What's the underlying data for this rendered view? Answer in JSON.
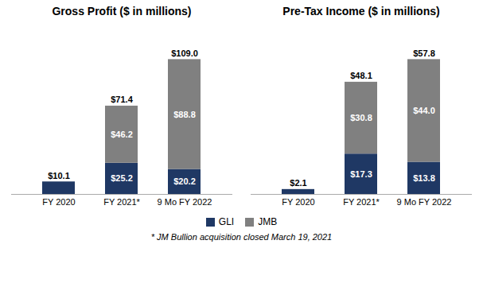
{
  "chart_data": [
    {
      "type": "bar",
      "stacked": true,
      "title": "Gross Profit ($ in millions)",
      "categories": [
        "FY 2020",
        "FY 2021*",
        "9 Mo FY 2022"
      ],
      "series": [
        {
          "name": "GLI",
          "color": "#1F3864",
          "values": [
            10.1,
            25.2,
            20.2
          ],
          "value_labels": [
            null,
            "$25.2",
            "$20.2"
          ]
        },
        {
          "name": "JMB",
          "color": "#808080",
          "values": [
            0.0,
            46.2,
            88.8
          ],
          "value_labels": [
            null,
            "$46.2",
            "$88.8"
          ]
        }
      ],
      "totals": [
        10.1,
        71.4,
        109.0
      ],
      "total_labels": [
        "$10.1",
        "$71.4",
        "$109.0"
      ],
      "ylim": [
        0,
        136.25
      ],
      "grid": false,
      "data_labels": true,
      "tick_labels": "x"
    },
    {
      "type": "bar",
      "stacked": true,
      "title": "Pre-Tax Income ($ in millions)",
      "categories": [
        "FY 2020",
        "FY 2021*",
        "9 Mo FY 2022"
      ],
      "series": [
        {
          "name": "GLI",
          "color": "#1F3864",
          "values": [
            2.1,
            17.3,
            13.8
          ],
          "value_labels": [
            null,
            "$17.3",
            "$13.8"
          ]
        },
        {
          "name": "JMB",
          "color": "#808080",
          "values": [
            0.0,
            30.8,
            44.0
          ],
          "value_labels": [
            null,
            "$30.8",
            "$44.0"
          ]
        }
      ],
      "totals": [
        2.1,
        48.1,
        57.8
      ],
      "total_labels": [
        "$2.1",
        "$48.1",
        "$57.8"
      ],
      "ylim": [
        0,
        72.25
      ],
      "grid": false,
      "data_labels": true,
      "tick_labels": "x"
    }
  ],
  "legend": "bottom",
  "footnote": "* JM Bullion acquisition closed March 19, 2021"
}
